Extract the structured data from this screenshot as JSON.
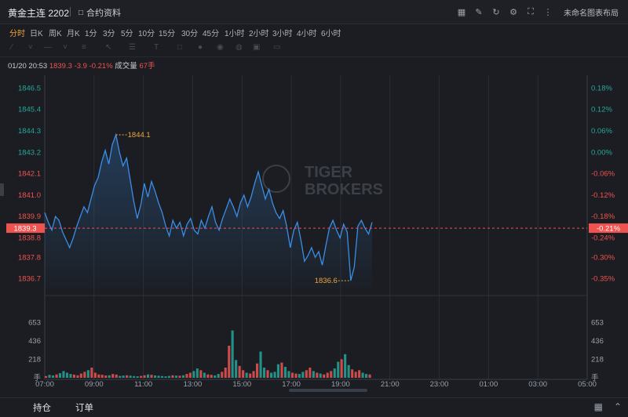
{
  "header": {
    "title": "黄金主连 2202",
    "doc_label": "合约资料",
    "layout_label": "未命名图表布局",
    "tool_icons": [
      "screen-icon",
      "edit-icon",
      "refresh-icon",
      "settings-icon",
      "fullscreen-icon",
      "more-icon"
    ]
  },
  "timeframes": [
    "分时",
    "日K",
    "周K",
    "月K",
    "1分",
    "3分",
    "5分",
    "10分",
    "15分",
    "30分",
    "45分",
    "1小时",
    "2小时",
    "3小时",
    "4小时",
    "6小时"
  ],
  "active_timeframe": "分时",
  "info": {
    "datetime": "01/20 20:53",
    "price": "1839.3",
    "change": "-3.9",
    "change_pct": "-0.21%",
    "volume_label": "成交量",
    "volume": "67手"
  },
  "watermark": {
    "line1": "TIGER",
    "line2": "BROKERS"
  },
  "bottom": {
    "tab1": "持仓",
    "tab2": "订单"
  },
  "colors": {
    "line": "#3a8ee6",
    "up": "#ef5350",
    "down": "#26a69a",
    "accent": "#f0a43a",
    "grid": "#2a2d34",
    "pos": "#26a69a"
  },
  "chart_data": {
    "type": "line",
    "price_ticks": [
      "1846.5",
      "1845.4",
      "1844.3",
      "1843.2",
      "1842.1",
      "1841.0",
      "1839.9",
      "1838.8",
      "1837.8",
      "1836.7"
    ],
    "price_tick_values": [
      1846.5,
      1845.4,
      1844.3,
      1843.2,
      1842.1,
      1841.0,
      1839.9,
      1838.8,
      1837.8,
      1836.7
    ],
    "pct_ticks": [
      "0.18%",
      "0.12%",
      "0.06%",
      "0.00%",
      "-0.06%",
      "-0.12%",
      "-0.18%",
      "-0.24%",
      "-0.30%",
      "-0.35%"
    ],
    "current_price_label": "1839.3",
    "current_pct_label": "-0.21%",
    "high_label": "1844.1",
    "low_label": "1836.6",
    "volume_ticks": [
      "653",
      "436",
      "218",
      "手"
    ],
    "x_ticks": [
      "07:00",
      "09:00",
      "11:00",
      "13:00",
      "15:00",
      "17:00",
      "19:00",
      "21:00",
      "23:00",
      "01:00",
      "03:00",
      "05:00"
    ],
    "ylim": [
      1836.2,
      1847.0
    ],
    "prev_close": 1843.2,
    "price_series": [
      1840.1,
      1839.6,
      1839.2,
      1839.9,
      1839.7,
      1839.1,
      1838.7,
      1838.3,
      1838.8,
      1839.4,
      1839.9,
      1840.4,
      1840.1,
      1840.8,
      1841.5,
      1841.9,
      1842.7,
      1843.3,
      1842.6,
      1843.6,
      1844.1,
      1843.2,
      1842.5,
      1842.9,
      1841.8,
      1840.7,
      1839.8,
      1840.5,
      1841.6,
      1840.9,
      1841.7,
      1841.2,
      1840.6,
      1840.1,
      1839.4,
      1838.9,
      1839.7,
      1839.3,
      1839.6,
      1838.9,
      1839.5,
      1839.8,
      1839.2,
      1839.0,
      1839.7,
      1839.3,
      1839.9,
      1840.4,
      1839.6,
      1839.2,
      1839.8,
      1840.3,
      1840.8,
      1840.4,
      1839.9,
      1840.6,
      1841.0,
      1840.4,
      1840.9,
      1841.6,
      1842.2,
      1841.5,
      1840.8,
      1841.3,
      1840.6,
      1840.1,
      1839.8,
      1840.2,
      1839.4,
      1838.3,
      1839.2,
      1839.6,
      1838.7,
      1837.6,
      1837.9,
      1838.3,
      1837.8,
      1838.1,
      1837.4,
      1838.4,
      1839.3,
      1839.7,
      1839.2,
      1838.8,
      1839.5,
      1839.1,
      1836.6,
      1837.3,
      1839.4,
      1839.7,
      1839.3,
      1839.0,
      1839.6
    ],
    "volume_series": [
      20,
      35,
      28,
      40,
      55,
      80,
      60,
      45,
      38,
      30,
      50,
      70,
      90,
      120,
      60,
      40,
      35,
      28,
      30,
      45,
      38,
      22,
      26,
      30,
      25,
      20,
      18,
      22,
      30,
      40,
      35,
      28,
      24,
      20,
      18,
      22,
      30,
      26,
      25,
      30,
      45,
      60,
      80,
      110,
      90,
      60,
      40,
      35,
      28,
      45,
      70,
      120,
      380,
      560,
      210,
      140,
      90,
      60,
      50,
      80,
      170,
      310,
      120,
      90,
      60,
      70,
      160,
      180,
      130,
      80,
      60,
      50,
      45,
      70,
      90,
      120,
      80,
      60,
      50,
      40,
      60,
      80,
      110,
      190,
      220,
      280,
      150,
      100,
      70,
      90,
      60,
      45,
      40
    ],
    "volume_max": 871
  }
}
